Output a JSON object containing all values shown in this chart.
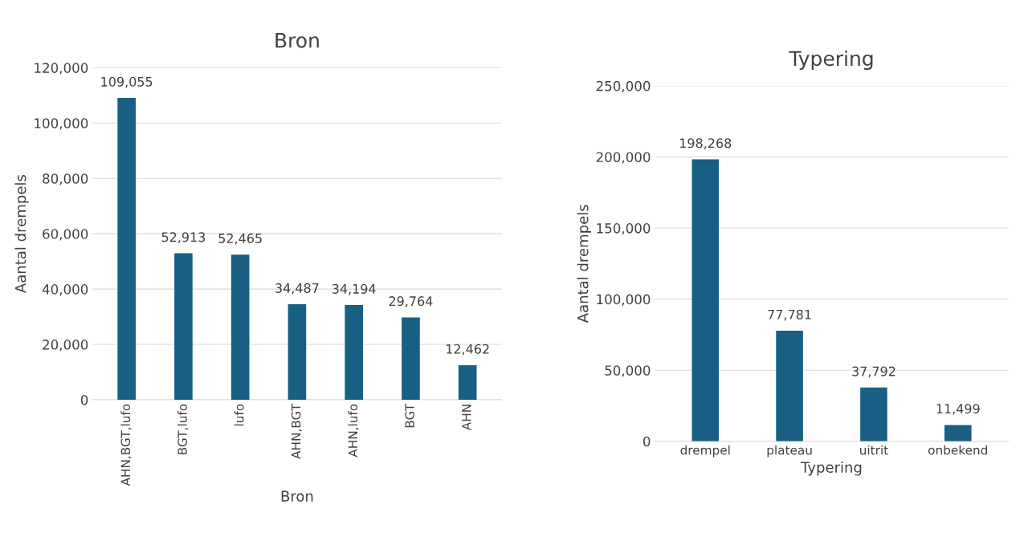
{
  "chart_data": [
    {
      "type": "bar",
      "title": "Bron",
      "xlabel": "Bron",
      "ylabel": "Aantal drempels",
      "categories": [
        "AHN,BGT,lufo",
        "BGT,lufo",
        "lufo",
        "AHN,BGT",
        "AHN,lufo",
        "BGT",
        "AHN"
      ],
      "values": [
        109055,
        52913,
        52465,
        34487,
        34194,
        29764,
        12462
      ],
      "color": "#195e83",
      "ylim": [
        0,
        120000
      ],
      "yticks": [
        0,
        {
          "value": 20000,
          "label": "20,000"
        },
        {
          "value": 40000,
          "label": "40,000"
        },
        {
          "value": 60000,
          "label": "60,000"
        },
        {
          "value": 80000,
          "label": "80,000"
        },
        {
          "value": 100000,
          "label": "100,000"
        },
        {
          "value": 120000,
          "label": "120,000"
        }
      ],
      "grid": "y",
      "value_labels": [
        "109,055",
        "52,913",
        "52,465",
        "34,487",
        "34,194",
        "29,764",
        "12,462"
      ]
    },
    {
      "type": "bar",
      "title": "Typering",
      "xlabel": "Typering",
      "ylabel": "Aantal drempels",
      "categories": [
        "drempel",
        "plateau",
        "uitrit",
        "onbekend"
      ],
      "values": [
        198268,
        77781,
        37792,
        11499
      ],
      "color": "#195e83",
      "ylim": [
        0,
        250000
      ],
      "yticks": [
        0,
        {
          "value": 50000,
          "label": "50,000"
        },
        {
          "value": 100000,
          "label": "100,000"
        },
        {
          "value": 150000,
          "label": "150,000"
        },
        {
          "value": 200000,
          "label": "200,000"
        },
        {
          "value": 250000,
          "label": "250,000"
        }
      ],
      "grid": "y",
      "value_labels": [
        "198,268",
        "77,781",
        "37,792",
        "11,499"
      ]
    }
  ]
}
